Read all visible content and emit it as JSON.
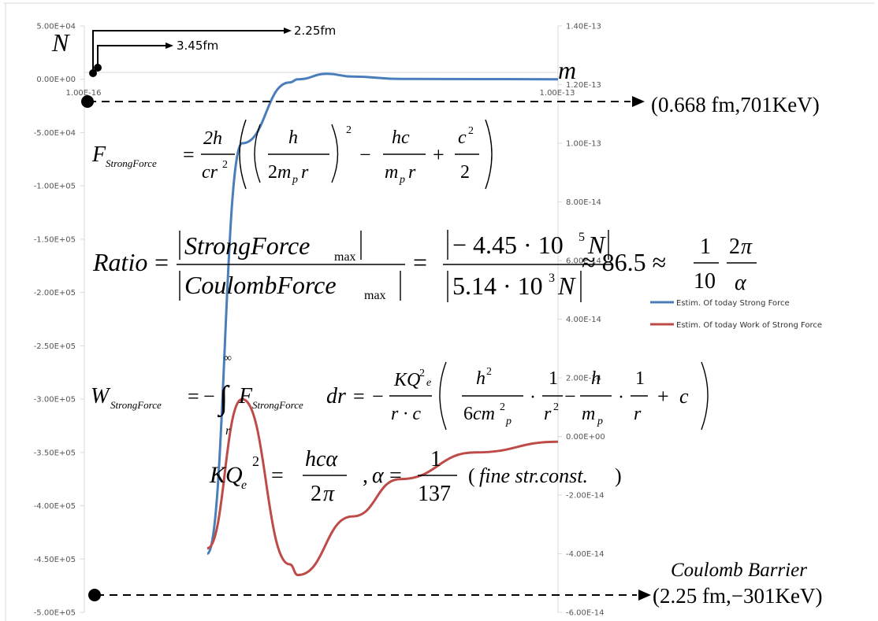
{
  "chart_data": {
    "type": "line",
    "x_axis": {
      "scale": "log",
      "ticks": [
        "1.00E-16",
        "1.00E-13"
      ]
    },
    "y_axis_left": {
      "label": "N",
      "range": [
        -500000,
        50000
      ],
      "ticks": [
        "5.00E+04",
        "0.00E+00",
        "-5.00E+04",
        "-1.00E+05",
        "-1.50E+05",
        "-2.00E+05",
        "-2.50E+05",
        "-3.00E+05",
        "-3.50E+05",
        "-4.00E+05",
        "-4.50E+05",
        "-5.00E+05"
      ]
    },
    "y_axis_right": {
      "label": "m",
      "range": [
        -6e-14,
        1.4e-13
      ],
      "ticks": [
        "1.40E-13",
        "1.20E-13",
        "1.00E-13",
        "8.00E-14",
        "6.00E-14",
        "4.00E-14",
        "2.00E-14",
        "0.00E+00",
        "-2.00E-14",
        "-4.00E-14",
        "-6.00E-14"
      ]
    },
    "series": [
      {
        "name": "Estim. Of today Strong Force",
        "color": "#4a7ebb",
        "x": [
          6e-16,
          1e-15,
          2e-15,
          2.25e-15,
          3.45e-15,
          5e-15,
          1e-14,
          1e-13
        ],
        "y": [
          -445000,
          -60000,
          -3000,
          0,
          5140,
          2500,
          400,
          0
        ]
      },
      {
        "name": "Estim. Of today Work of Strong Force",
        "color": "#be4b48",
        "x": [
          6e-16,
          1e-15,
          2e-15,
          2.25e-15,
          5e-15,
          1e-14,
          3e-14,
          1e-13
        ],
        "y": [
          -440000,
          -300000,
          -455000,
          -465000,
          -410000,
          -375000,
          -350000,
          -340000
        ]
      }
    ],
    "legend_position": "right",
    "grid": false
  },
  "annotations": {
    "arrow_1": "2.25fm",
    "arrow_2": "3.45fm",
    "point_top": "(0.668 fm,701KeV)",
    "barrier_title": "Coulomb Barrier",
    "point_bottom": "(2.25 fm,−301KeV)"
  },
  "formulas": {
    "strong_force": "F_StrongForce = (2h / cr²)(((h / 2m_p r))² − hc / m_p r + c²/2)",
    "ratio": "Ratio = |StrongForce_max| / |CoulombForce_max| = |−4.45·10⁵ N| / |5.14·10³ N| ≈ 86.5 ≈ (1/10)(2π/α)",
    "work": "W_StrongForce = −∫ᵣ^∞ F_StrongForce dr = −(KQ²ₑ / r·c)(h² / 6cm²ₚ · 1/r² − h/mₚ · 1/r + c)",
    "kq": "KQₑ² = hcα / 2π , α = 1/137 (fine str.const.)"
  }
}
